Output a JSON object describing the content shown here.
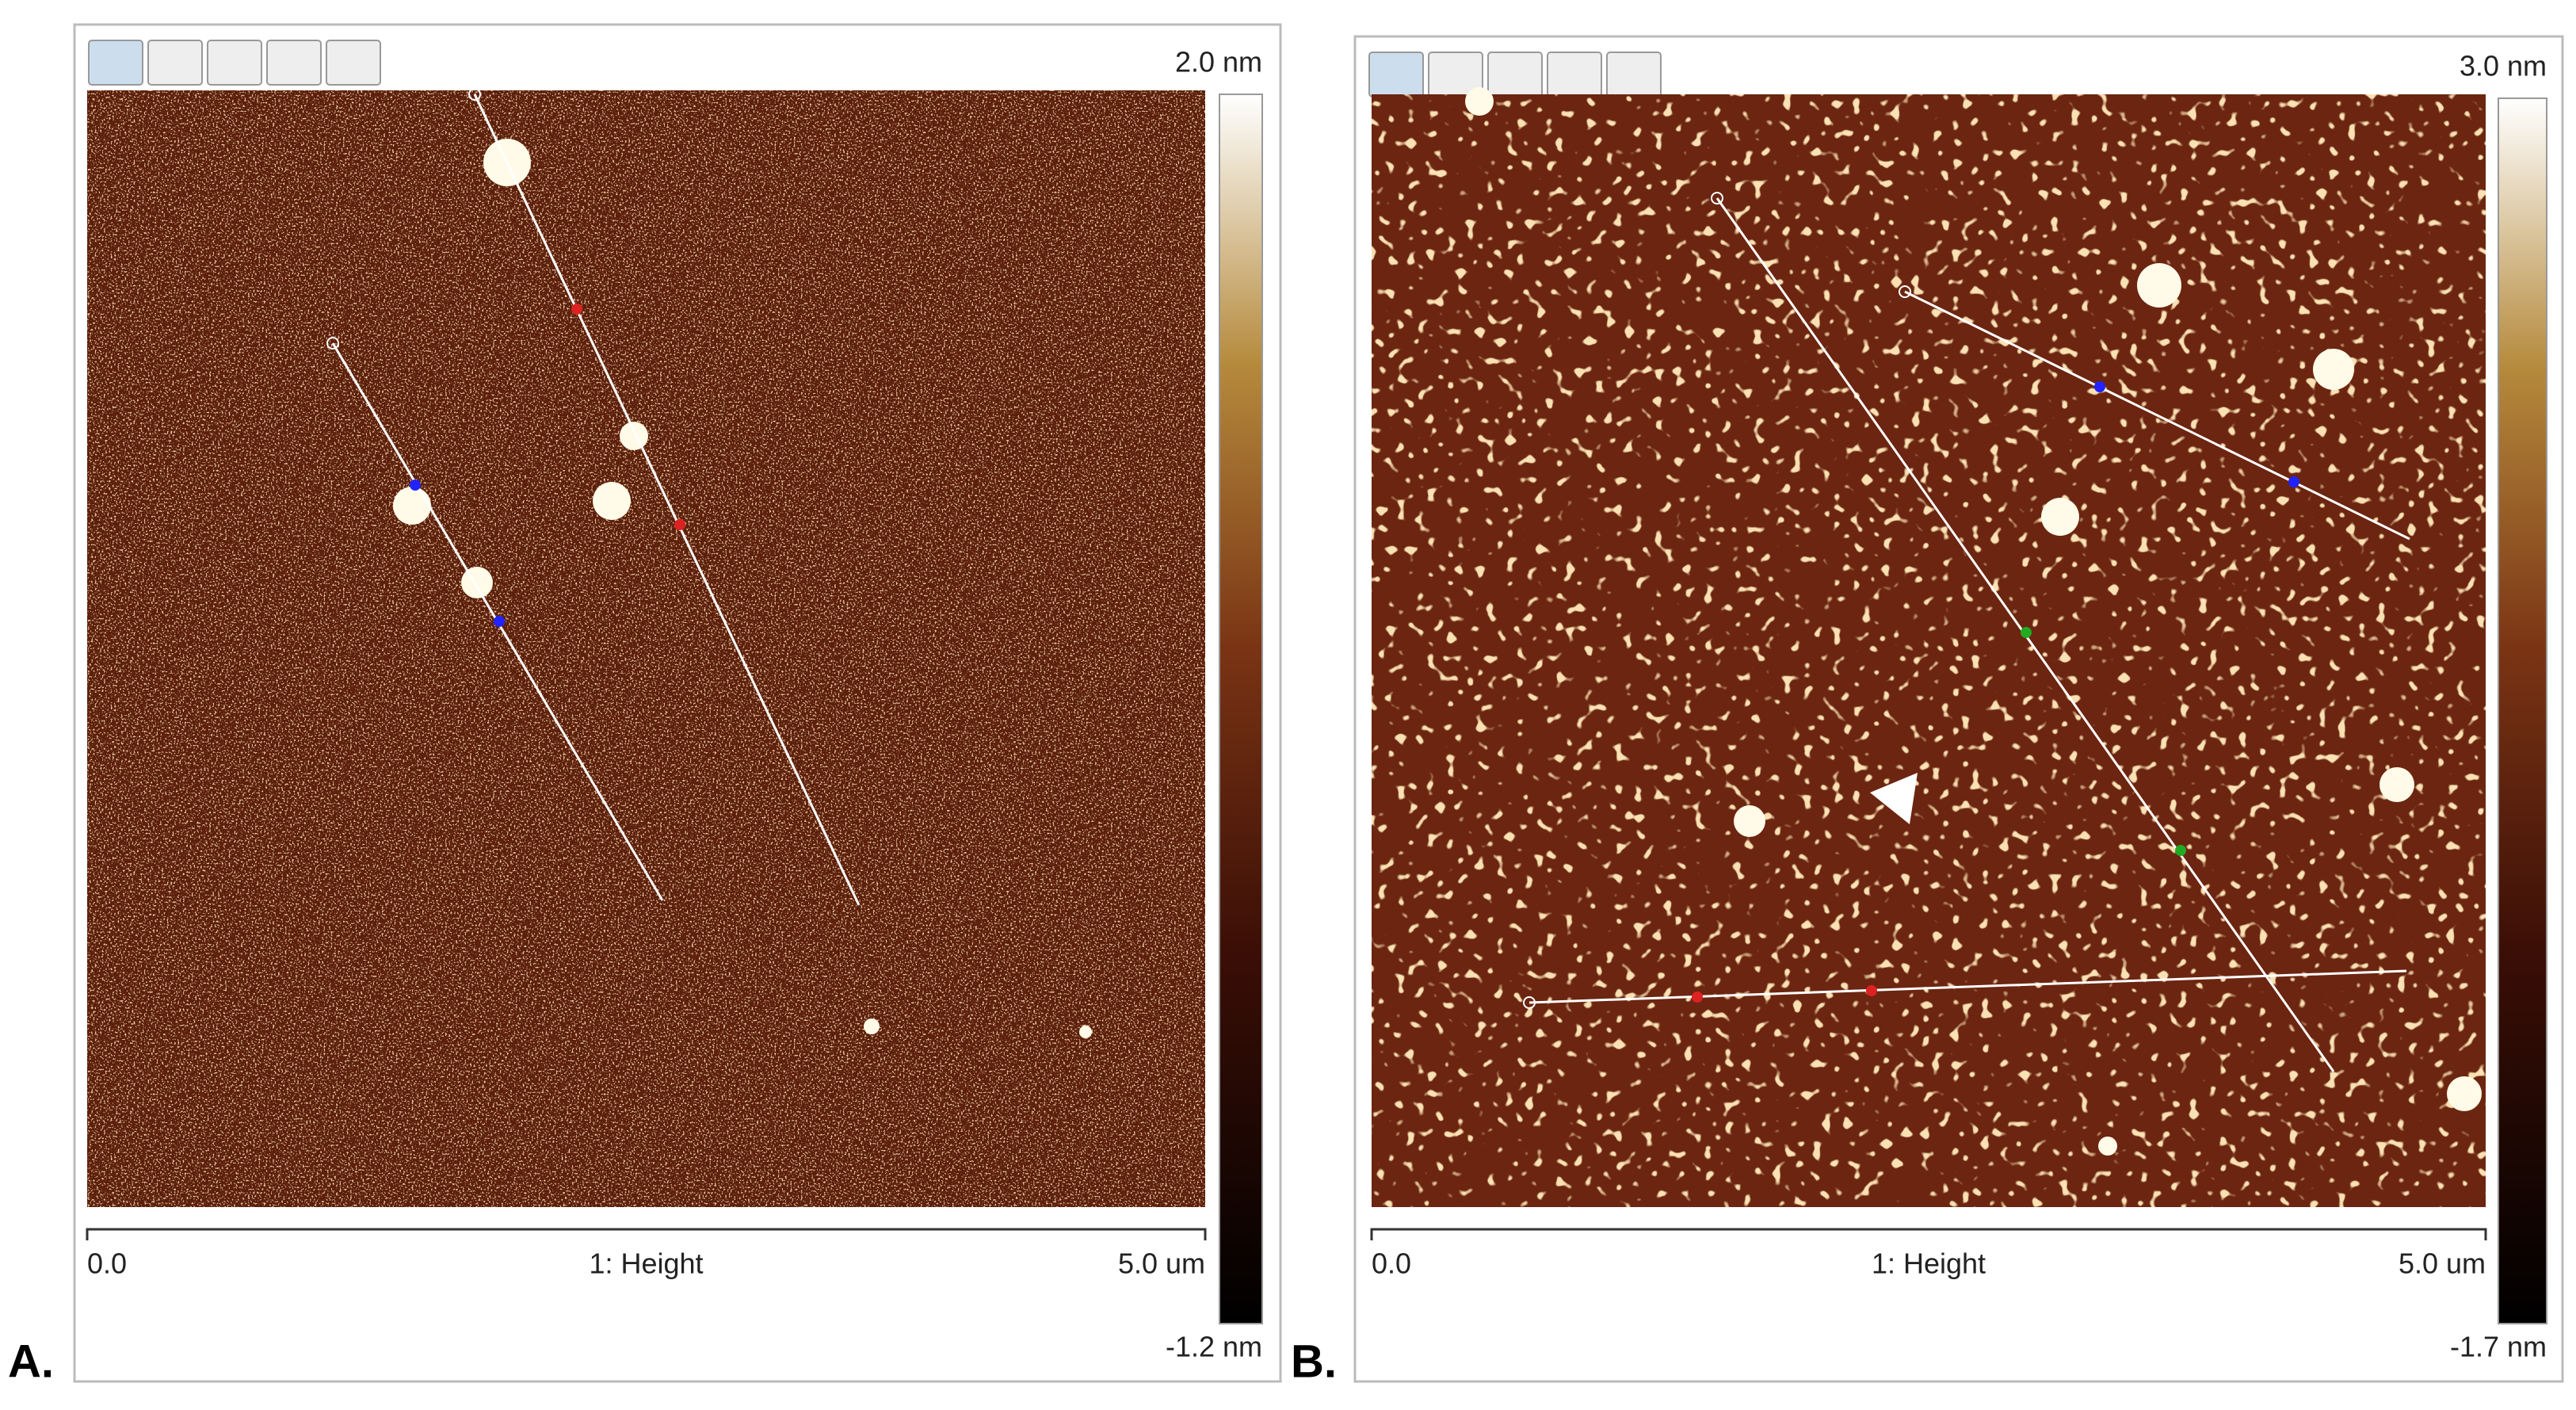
{
  "panels": [
    {
      "label": "A.",
      "scale_max": "2.0 nm",
      "scale_min": "-1.2 nm",
      "axis_start": "0.0",
      "axis_end": "5.0 um",
      "axis_title": "1: Height"
    },
    {
      "label": "B.",
      "scale_max": "3.0 nm",
      "scale_min": "-1.7 nm",
      "axis_start": "0.0",
      "axis_end": "5.0 um",
      "axis_title": "1: Height"
    }
  ]
}
